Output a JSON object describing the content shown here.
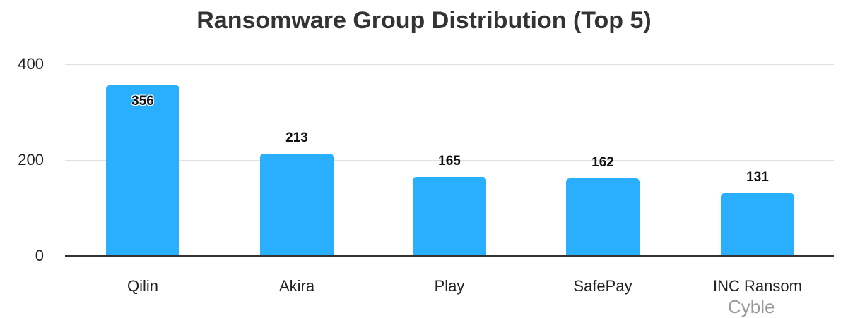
{
  "chart_data": {
    "type": "bar",
    "title": "Ransomware Group Distribution (Top 5)",
    "categories": [
      "Qilin",
      "Akira",
      "Play",
      "SafePay",
      "INC Ransom"
    ],
    "values": [
      356,
      213,
      165,
      162,
      131
    ],
    "xlabel": "",
    "ylabel": "",
    "ylim": [
      0,
      400
    ],
    "yticks": [
      0,
      200,
      400
    ],
    "grid": true,
    "legend": null,
    "bar_color": "#2aaefe",
    "watermark": "Cyble"
  },
  "ticks": {
    "t0": "0",
    "t200": "200",
    "t400": "400"
  },
  "labels": {
    "v0": "356",
    "v1": "213",
    "v2": "165",
    "v3": "162",
    "v4": "131",
    "c0": "Qilin",
    "c1": "Akira",
    "c2": "Play",
    "c3": "SafePay",
    "c4": "INC Ransom"
  }
}
